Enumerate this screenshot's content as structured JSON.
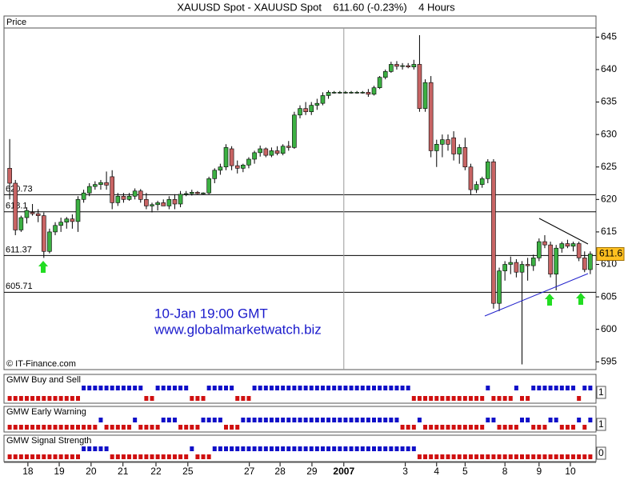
{
  "chart_data": [
    {
      "type": "candlestick",
      "title": "XAUUSD Spot - XAUUSD Spot    611.60 (-0.23%)    4 Hours",
      "panel_label": "Price",
      "annotations": [
        "10-Jan 19:00 GMT",
        "www.globalmarketwatch.biz"
      ],
      "copyright": "© IT-Finance.com",
      "up_color": "#3cb043",
      "down_color": "#c86464",
      "ylim": [
        593.8,
        646.4
      ],
      "yticks": [
        595,
        600,
        605,
        610,
        615,
        620,
        625,
        630,
        635,
        640,
        645
      ],
      "xlim": [
        0,
        104
      ],
      "xticks": [
        {
          "value": 4.2,
          "label": "18"
        },
        {
          "value": 9.7,
          "label": "19"
        },
        {
          "value": 15.3,
          "label": "20"
        },
        {
          "value": 20.9,
          "label": "21"
        },
        {
          "value": 26.7,
          "label": "22"
        },
        {
          "value": 32.3,
          "label": "25"
        },
        {
          "value": 43.1,
          "label": "27"
        },
        {
          "value": 48.5,
          "label": "28"
        },
        {
          "value": 54.1,
          "label": "29"
        },
        {
          "value": 59.7,
          "label": "2007",
          "major": true
        },
        {
          "value": 70.5,
          "label": "3"
        },
        {
          "value": 76,
          "label": "4"
        },
        {
          "value": 81,
          "label": "5"
        },
        {
          "value": 88,
          "label": "8"
        },
        {
          "value": 94,
          "label": "9"
        },
        {
          "value": 99.5,
          "label": "10"
        }
      ],
      "levels": [
        620.73,
        618.1,
        611.37,
        605.71
      ],
      "last_price": 611.6,
      "x": [
        1,
        2,
        3,
        4,
        5,
        6,
        7,
        8,
        9,
        10,
        11,
        12,
        13,
        14,
        15,
        16,
        17,
        18,
        19,
        20,
        21,
        22,
        23,
        24,
        25,
        26,
        27,
        28,
        29,
        30,
        31,
        32,
        33,
        34,
        35,
        36,
        37,
        38,
        39,
        40,
        41,
        42,
        43,
        44,
        45,
        46,
        47,
        48,
        49,
        50,
        51,
        52,
        53,
        54,
        55,
        56,
        57,
        58,
        59,
        60,
        61,
        62,
        63,
        64,
        65,
        66,
        67,
        68,
        69,
        70,
        71,
        72,
        73,
        74,
        75,
        76,
        77,
        78,
        79,
        80,
        81,
        82,
        83,
        84,
        85,
        86,
        87,
        88,
        89,
        90,
        91,
        92,
        93,
        94,
        95,
        96,
        97,
        98,
        99,
        100,
        101,
        102,
        103
      ],
      "open": [
        624.8,
        622.5,
        615.3,
        617.2,
        618,
        617.8,
        617.5,
        612,
        615,
        616,
        616.5,
        617,
        616.6,
        620,
        621,
        622,
        622.3,
        622.6,
        623.5,
        619.5,
        620.5,
        620,
        620.5,
        621.3,
        620,
        619,
        619.2,
        619.5,
        619,
        620,
        619.3,
        620.8,
        620.9,
        621.1,
        620.9,
        621,
        623.2,
        624.5,
        625,
        627.8,
        625.2,
        624.8,
        625.3,
        626.2,
        627.2,
        627.8,
        626.8,
        627.5,
        627.1,
        628.2,
        628,
        633,
        634,
        633.5,
        634.5,
        634.8,
        636,
        636.5,
        636.5,
        636.5,
        636.5,
        636.5,
        636.5,
        636.5,
        636.2,
        637.2,
        638.8,
        639.7,
        640.8,
        640.5,
        640.6,
        640.4,
        640.8,
        634,
        638,
        627.5,
        628.5,
        629.2,
        629.5,
        627,
        628,
        625,
        621.5,
        622.3,
        623.2,
        625.8,
        604,
        609,
        610,
        610.3,
        608.8,
        610,
        609.8,
        611,
        613.5,
        613,
        608.5,
        612.5,
        613.2,
        612.8,
        613.2,
        611,
        609.2
      ],
      "high": [
        629.3,
        623,
        617.5,
        618.8,
        619.3,
        618.5,
        618,
        615.5,
        616.5,
        617.2,
        617.3,
        617.7,
        620.5,
        621.5,
        622.5,
        622.8,
        623,
        624.3,
        624.5,
        621,
        621,
        621,
        621.7,
        621.6,
        621,
        619.5,
        619.8,
        620,
        620.5,
        620.8,
        621.3,
        621.3,
        621.5,
        621.3,
        621.1,
        623.5,
        624.8,
        625.5,
        628.5,
        628.2,
        626,
        625.5,
        626.5,
        627.5,
        628.3,
        628,
        628,
        628.2,
        628.5,
        629,
        633.5,
        634.5,
        635,
        635,
        635.5,
        636.5,
        636.8,
        636.7,
        636.7,
        636.7,
        636.7,
        636.7,
        636.7,
        637,
        637.5,
        639,
        640,
        641.2,
        641.3,
        641,
        641,
        641.5,
        645.3,
        638.5,
        639,
        629.2,
        630,
        630,
        630.5,
        628.5,
        629.5,
        625.5,
        622.8,
        623.5,
        626.2,
        626.2,
        609.5,
        610.5,
        611.2,
        610.8,
        610.5,
        611,
        611.5,
        614,
        614.5,
        613.5,
        613,
        613.5,
        613.8,
        613.5,
        613.5,
        612,
        612
      ],
      "low": [
        620,
        614.5,
        615,
        616.3,
        617.5,
        616.5,
        611,
        611.7,
        614.5,
        615,
        615.5,
        615.5,
        615,
        619.5,
        620.5,
        621.5,
        621.5,
        621.5,
        618.5,
        619,
        619.5,
        619.8,
        620,
        619.5,
        618.5,
        618,
        618.3,
        619,
        618.5,
        618.5,
        618.8,
        620.5,
        620.6,
        620.8,
        620.8,
        620.8,
        622.5,
        623.8,
        624.5,
        624.5,
        624,
        624.2,
        624.8,
        625.5,
        626.6,
        626.5,
        626.5,
        626.8,
        626.8,
        627.5,
        627.8,
        632.5,
        633,
        633,
        633.8,
        634.5,
        635.5,
        636.3,
        636.3,
        636.3,
        636.3,
        636.3,
        636.3,
        635.8,
        636,
        637,
        638.5,
        639.5,
        640,
        640,
        640.2,
        640,
        633.5,
        633.5,
        626.5,
        625,
        626.5,
        627.5,
        626,
        625.5,
        624.5,
        620.7,
        621,
        621.8,
        622.5,
        603.2,
        602.8,
        607.5,
        608.5,
        608,
        594.6,
        607.5,
        609,
        610.5,
        612.5,
        608,
        606,
        611.8,
        612.5,
        612,
        610.5,
        608.8,
        608.5
      ],
      "close": [
        622.5,
        615.3,
        617.2,
        618.3,
        617.8,
        617.5,
        612,
        615,
        616,
        616.5,
        617,
        616.6,
        620,
        621,
        622,
        622.3,
        622.6,
        622.2,
        619.5,
        620.5,
        620,
        620.5,
        621.3,
        620,
        619,
        619.2,
        619.5,
        619,
        620,
        619.3,
        620.8,
        620.9,
        621.1,
        620.9,
        621,
        623.2,
        624.5,
        625,
        628,
        625.2,
        624.8,
        625.3,
        626.2,
        627.2,
        627.8,
        626.8,
        627.5,
        627.1,
        628.2,
        628,
        633,
        634,
        633.5,
        634.5,
        634.8,
        636,
        636.5,
        636.5,
        636.5,
        636.5,
        636.5,
        636.5,
        636.5,
        636.2,
        637.2,
        638.8,
        639.7,
        640.8,
        640.5,
        640.6,
        640.4,
        640.8,
        634,
        638,
        627.5,
        628.5,
        629.2,
        628.5,
        627,
        628,
        625,
        621.5,
        622.3,
        623.2,
        625.8,
        604,
        609,
        610,
        610.3,
        608.8,
        610,
        609.8,
        611,
        613.5,
        613,
        608.5,
        612.5,
        613.2,
        612.8,
        613.2,
        611,
        609.2,
        611.6
      ]
    },
    {
      "type": "signal",
      "title": "GMW Buy and Sell",
      "current_value": 1,
      "up_color": "#1010c8",
      "down_color": "#d01010",
      "values": [
        0,
        0,
        0,
        0,
        0,
        0,
        0,
        0,
        0,
        0,
        0,
        0,
        0,
        1,
        1,
        1,
        1,
        1,
        1,
        1,
        1,
        1,
        1,
        1,
        0,
        0,
        1,
        1,
        1,
        1,
        1,
        1,
        0,
        0,
        0,
        1,
        1,
        1,
        1,
        1,
        0,
        0,
        0,
        1,
        1,
        1,
        1,
        1,
        1,
        1,
        1,
        1,
        1,
        1,
        1,
        1,
        1,
        1,
        1,
        1,
        1,
        1,
        1,
        1,
        1,
        1,
        1,
        1,
        1,
        1,
        1,
        0,
        0,
        0,
        0,
        0,
        0,
        0,
        0,
        0,
        0,
        0,
        0,
        0,
        1,
        0,
        0,
        0,
        0,
        1,
        0,
        0,
        1,
        1,
        1,
        1,
        1,
        1,
        1,
        1,
        0,
        1,
        1
      ]
    },
    {
      "type": "signal",
      "title": "GMW Early Warning",
      "current_value": 1,
      "up_color": "#1010c8",
      "down_color": "#d01010",
      "values": [
        0,
        0,
        0,
        0,
        0,
        0,
        0,
        0,
        0,
        0,
        0,
        0,
        0,
        0,
        0,
        0,
        1,
        0,
        0,
        0,
        0,
        0,
        1,
        0,
        0,
        0,
        0,
        1,
        1,
        1,
        0,
        0,
        0,
        0,
        1,
        1,
        1,
        1,
        0,
        0,
        0,
        1,
        1,
        1,
        1,
        1,
        1,
        1,
        1,
        1,
        1,
        1,
        1,
        1,
        1,
        1,
        1,
        1,
        1,
        1,
        1,
        1,
        1,
        1,
        1,
        1,
        1,
        1,
        1,
        0,
        0,
        0,
        1,
        0,
        0,
        0,
        0,
        0,
        0,
        0,
        0,
        0,
        0,
        0,
        1,
        1,
        0,
        0,
        0,
        0,
        1,
        1,
        0,
        0,
        0,
        1,
        1,
        0,
        0,
        0,
        1,
        0,
        1
      ]
    },
    {
      "type": "signal",
      "title": "GMW Signal Strength",
      "current_value": 0,
      "up_color": "#1010c8",
      "down_color": "#d01010",
      "values": [
        0,
        0,
        0,
        0,
        0,
        0,
        0,
        0,
        0,
        0,
        0,
        0,
        0,
        1,
        1,
        1,
        1,
        1,
        0,
        0,
        0,
        0,
        0,
        0,
        0,
        0,
        0,
        0,
        0,
        0,
        0,
        0,
        1,
        0,
        0,
        0,
        1,
        1,
        1,
        1,
        1,
        1,
        1,
        1,
        1,
        1,
        1,
        1,
        1,
        1,
        1,
        1,
        1,
        1,
        1,
        1,
        1,
        1,
        1,
        1,
        1,
        1,
        1,
        1,
        1,
        1,
        1,
        1,
        1,
        1,
        1,
        1,
        0,
        0,
        0,
        0,
        0,
        0,
        0,
        0,
        0,
        0,
        0,
        0,
        0,
        0,
        0,
        0,
        0,
        0,
        0,
        0,
        0,
        0,
        0,
        0,
        0,
        0,
        0,
        0,
        0,
        0,
        0
      ]
    }
  ]
}
